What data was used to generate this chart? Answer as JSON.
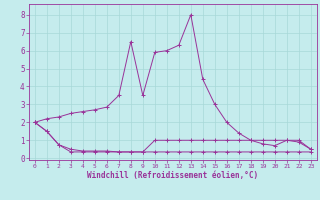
{
  "xlabel": "Windchill (Refroidissement éolien,°C)",
  "background_color": "#c5eced",
  "grid_color": "#a8d8d8",
  "line_color": "#993399",
  "spine_color": "#993399",
  "x_ticks": [
    0,
    1,
    2,
    3,
    4,
    5,
    6,
    7,
    8,
    9,
    10,
    11,
    12,
    13,
    14,
    15,
    16,
    17,
    18,
    19,
    20,
    21,
    22,
    23
  ],
  "y_ticks": [
    0,
    1,
    2,
    3,
    4,
    5,
    6,
    7,
    8
  ],
  "ylim": [
    -0.1,
    8.6
  ],
  "xlim": [
    -0.5,
    23.5
  ],
  "series1_x": [
    0,
    1,
    2,
    3,
    4,
    5,
    6,
    7,
    8,
    9,
    10,
    11,
    12,
    13,
    14,
    15,
    16,
    17,
    18,
    19,
    20,
    21,
    22,
    23
  ],
  "series1_y": [
    2.0,
    2.2,
    2.3,
    2.5,
    2.6,
    2.7,
    2.85,
    3.5,
    6.5,
    3.5,
    5.9,
    6.0,
    6.3,
    8.0,
    4.4,
    3.0,
    2.0,
    1.4,
    1.0,
    0.8,
    0.7,
    1.0,
    0.9,
    0.5
  ],
  "series2_x": [
    0,
    1,
    2,
    3,
    4,
    5,
    6,
    7,
    8,
    9,
    10,
    11,
    12,
    13,
    14,
    15,
    16,
    17,
    18,
    19,
    20,
    21,
    22,
    23
  ],
  "series2_y": [
    2.0,
    1.5,
    0.75,
    0.5,
    0.4,
    0.4,
    0.4,
    0.35,
    0.35,
    0.35,
    1.0,
    1.0,
    1.0,
    1.0,
    1.0,
    1.0,
    1.0,
    1.0,
    1.0,
    1.0,
    1.0,
    1.0,
    1.0,
    0.5
  ],
  "series3_x": [
    0,
    1,
    2,
    3,
    4,
    5,
    6,
    7,
    8,
    9,
    10,
    11,
    12,
    13,
    14,
    15,
    16,
    17,
    18,
    19,
    20,
    21,
    22,
    23
  ],
  "series3_y": [
    2.0,
    1.5,
    0.75,
    0.35,
    0.35,
    0.35,
    0.35,
    0.35,
    0.35,
    0.35,
    0.35,
    0.35,
    0.35,
    0.35,
    0.35,
    0.35,
    0.35,
    0.35,
    0.35,
    0.35,
    0.35,
    0.35,
    0.35,
    0.35
  ],
  "xlabel_fontsize": 5.5,
  "tick_fontsize_x": 4.5,
  "tick_fontsize_y": 5.5,
  "linewidth": 0.7,
  "markersize": 2.5
}
